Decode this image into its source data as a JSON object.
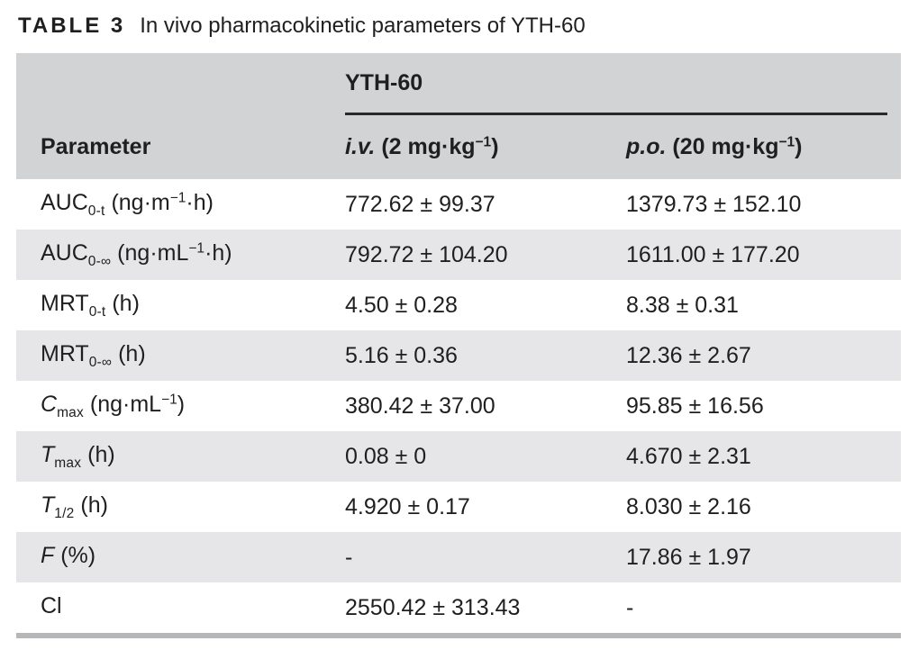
{
  "title": {
    "label": "TABLE 3",
    "text": "In vivo pharmacokinetic parameters of YTH-60"
  },
  "table": {
    "group_header": "YTH-60",
    "columns": {
      "param": "Parameter",
      "iv": {
        "prefix": "i.v.",
        "mid": " (2 mg·kg",
        "sup": "−1",
        "end": ")"
      },
      "po": {
        "prefix": "p.o.",
        "mid": " (20 mg·kg",
        "sup": "−1",
        "end": ")"
      }
    },
    "rows": [
      {
        "param": {
          "pre": "AUC",
          "sub": "0-t",
          "post_pre": " (ng·m",
          "sup": "−1",
          "post_end": "·h)"
        },
        "iv": "772.62 ± 99.37",
        "po": "1379.73 ± 152.10"
      },
      {
        "param": {
          "pre": "AUC",
          "sub": "0-∞",
          "post_pre": " (ng·mL",
          "sup": "−1",
          "post_end": "·h)"
        },
        "iv": "792.72 ± 104.20",
        "po": "1611.00 ± 177.20"
      },
      {
        "param": {
          "pre": "MRT",
          "sub": "0-t",
          "post_pre": " (h)",
          "sup": "",
          "post_end": ""
        },
        "iv": "4.50 ± 0.28",
        "po": "8.38 ± 0.31"
      },
      {
        "param": {
          "pre": "MRT",
          "sub": "0-∞",
          "post_pre": " (h)",
          "sup": "",
          "post_end": ""
        },
        "iv": "5.16 ± 0.36",
        "po": "12.36 ± 2.67"
      },
      {
        "param": {
          "pre": "C",
          "sub": "max",
          "post_pre": " (ng·mL",
          "sup": "−1",
          "post_end": ")"
        },
        "iv": "380.42 ± 37.00",
        "po": "95.85 ± 16.56"
      },
      {
        "param": {
          "pre": "T",
          "sub": "max",
          "post_pre": " (h)",
          "sup": "",
          "post_end": ""
        },
        "iv": "0.08 ± 0",
        "po": "4.670 ± 2.31"
      },
      {
        "param": {
          "pre": "T",
          "sub": "1/2",
          "post_pre": " (h)",
          "sup": "",
          "post_end": ""
        },
        "iv": "4.920 ± 0.17",
        "po": "8.030 ± 2.16"
      },
      {
        "param": {
          "pre": "F",
          "sub": "",
          "post_pre": " (%)",
          "sup": "",
          "post_end": ""
        },
        "iv": "-",
        "po": "17.86 ± 1.97"
      },
      {
        "param": {
          "pre": "Cl",
          "sub": "",
          "post_pre": "",
          "sup": "",
          "post_end": ""
        },
        "iv": "2550.42 ± 313.43",
        "po": "-"
      }
    ],
    "colors": {
      "header_bg": "#d2d3d5",
      "row_alt_bg": "#e6e6e8",
      "bottom_bar": "#b5b7b9",
      "text": "#1f1f21",
      "rule": "#29292b"
    }
  }
}
